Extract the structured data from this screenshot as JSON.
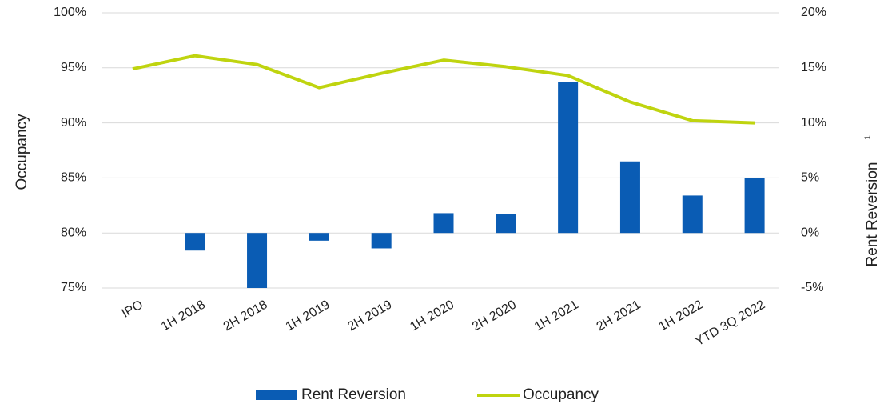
{
  "chart_data": {
    "type": "bar-line",
    "categories": [
      "IPO",
      "1H 2018",
      "2H 2018",
      "1H 2019",
      "2H 2019",
      "1H 2020",
      "2H 2020",
      "1H 2021",
      "2H 2021",
      "1H 2022",
      "YTD 3Q 2022"
    ],
    "series": [
      {
        "name": "Rent Reversion",
        "type": "bar",
        "axis": "y2",
        "color": "#0a5cb4",
        "values": [
          null,
          -1.6,
          -5.0,
          -0.7,
          -1.4,
          1.8,
          1.7,
          13.7,
          6.5,
          3.4,
          5.0
        ]
      },
      {
        "name": "Occupancy",
        "type": "line",
        "axis": "y",
        "color": "#bfd40f",
        "values": [
          94.9,
          96.1,
          95.3,
          93.2,
          94.5,
          95.7,
          95.1,
          94.3,
          91.9,
          90.2,
          90.0
        ]
      }
    ],
    "ylabel": "Occupancy",
    "y2label": "Rent Reversion",
    "y2label_note": "1",
    "ylim": [
      75,
      100
    ],
    "yticks": [
      {
        "value": 75,
        "label": "75%"
      },
      {
        "value": 80,
        "label": "80%"
      },
      {
        "value": 85,
        "label": "85%"
      },
      {
        "value": 90,
        "label": "90%"
      },
      {
        "value": 95,
        "label": "95%"
      },
      {
        "value": 100,
        "label": "100%"
      }
    ],
    "y2lim": [
      -5,
      20
    ],
    "y2ticks": [
      {
        "value": -5,
        "label": "-5%"
      },
      {
        "value": 0,
        "label": "0%"
      },
      {
        "value": 5,
        "label": "5%"
      },
      {
        "value": 10,
        "label": "10%"
      },
      {
        "value": 15,
        "label": "15%"
      },
      {
        "value": 20,
        "label": "20%"
      }
    ],
    "grid": true,
    "legend": "bottom"
  }
}
